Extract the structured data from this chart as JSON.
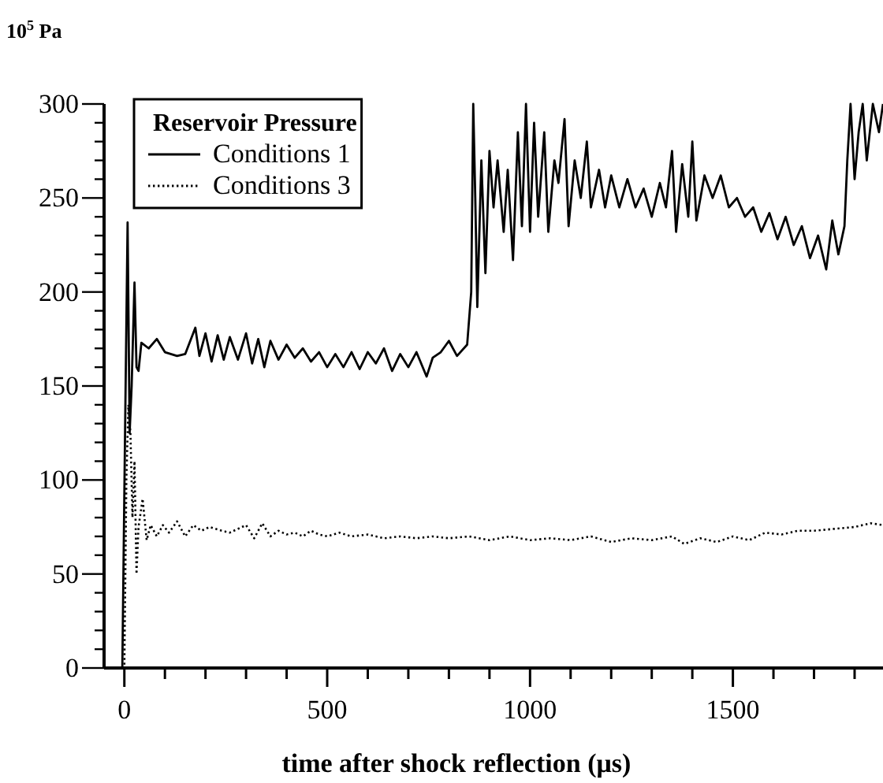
{
  "chart_data": {
    "type": "line",
    "ylabel": "10$^{5}$ Pa",
    "xlabel": "time after shock reflection (μs)",
    "legend_title": "Reservoir Pressure",
    "legend": "top left",
    "grid": false,
    "xlim": [
      -50,
      1870
    ],
    "ylim": [
      0,
      300
    ],
    "xticks": [
      0,
      {
        "value": 100,
        "label": null
      },
      {
        "value": 200,
        "label": null
      },
      {
        "value": 300,
        "label": null
      },
      {
        "value": 400,
        "label": null
      },
      500,
      {
        "value": 600,
        "label": null
      },
      {
        "value": 700,
        "label": null
      },
      {
        "value": 800,
        "label": null
      },
      {
        "value": 900,
        "label": null
      },
      1000,
      {
        "value": 1100,
        "label": null
      },
      {
        "value": 1200,
        "label": null
      },
      {
        "value": 1300,
        "label": null
      },
      {
        "value": 1400,
        "label": null
      },
      1500,
      {
        "value": 1600,
        "label": null
      },
      {
        "value": 1700,
        "label": null
      },
      {
        "value": 1800,
        "label": null
      }
    ],
    "yticks": [
      0,
      {
        "value": 10,
        "label": null
      },
      {
        "value": 20,
        "label": null
      },
      {
        "value": 30,
        "label": null
      },
      {
        "value": 40,
        "label": null
      },
      50,
      {
        "value": 60,
        "label": null
      },
      {
        "value": 70,
        "label": null
      },
      {
        "value": 80,
        "label": null
      },
      {
        "value": 90,
        "label": null
      },
      100,
      {
        "value": 110,
        "label": null
      },
      {
        "value": 120,
        "label": null
      },
      {
        "value": 130,
        "label": null
      },
      {
        "value": 140,
        "label": null
      },
      150,
      {
        "value": 160,
        "label": null
      },
      {
        "value": 170,
        "label": null
      },
      {
        "value": 180,
        "label": null
      },
      {
        "value": 190,
        "label": null
      },
      200,
      {
        "value": 210,
        "label": null
      },
      {
        "value": 220,
        "label": null
      },
      {
        "value": 230,
        "label": null
      },
      {
        "value": 240,
        "label": null
      },
      250,
      {
        "value": 260,
        "label": null
      },
      {
        "value": 270,
        "label": null
      },
      {
        "value": 280,
        "label": null
      },
      {
        "value": 290,
        "label": null
      },
      300
    ],
    "series": [
      {
        "name": "Conditions 1",
        "color": "#000000",
        "line_style": "solid",
        "x": [
          -50,
          -5,
          2,
          8,
          13,
          18,
          25,
          30,
          35,
          42,
          60,
          80,
          100,
          130,
          150,
          175,
          185,
          200,
          215,
          230,
          245,
          260,
          280,
          300,
          315,
          330,
          345,
          360,
          380,
          400,
          420,
          440,
          460,
          480,
          500,
          520,
          540,
          560,
          580,
          600,
          620,
          640,
          660,
          680,
          700,
          720,
          745,
          760,
          780,
          800,
          820,
          845,
          855,
          860,
          865,
          870,
          880,
          890,
          900,
          910,
          920,
          935,
          945,
          958,
          970,
          980,
          990,
          1000,
          1010,
          1020,
          1035,
          1045,
          1060,
          1070,
          1085,
          1095,
          1110,
          1125,
          1140,
          1150,
          1170,
          1185,
          1200,
          1220,
          1240,
          1260,
          1280,
          1300,
          1320,
          1335,
          1350,
          1360,
          1375,
          1390,
          1400,
          1410,
          1430,
          1450,
          1470,
          1490,
          1510,
          1530,
          1550,
          1570,
          1590,
          1610,
          1630,
          1650,
          1670,
          1690,
          1710,
          1730,
          1745,
          1760,
          1775,
          1782,
          1790,
          1800,
          1810,
          1820,
          1830,
          1845,
          1860,
          1870
        ],
        "values": [
          0,
          0,
          130,
          237,
          125,
          150,
          205,
          160,
          158,
          173,
          170,
          175,
          168,
          166,
          167,
          181,
          166,
          178,
          163,
          177,
          164,
          176,
          164,
          178,
          162,
          175,
          160,
          174,
          164,
          172,
          165,
          170,
          163,
          168,
          160,
          167,
          160,
          168,
          159,
          168,
          162,
          170,
          158,
          167,
          160,
          168,
          155,
          165,
          168,
          174,
          166,
          172,
          200,
          300,
          250,
          192,
          270,
          210,
          275,
          245,
          270,
          232,
          265,
          217,
          285,
          235,
          300,
          232,
          290,
          240,
          285,
          232,
          270,
          258,
          292,
          235,
          270,
          250,
          280,
          245,
          265,
          245,
          262,
          245,
          260,
          245,
          255,
          240,
          258,
          245,
          275,
          232,
          268,
          240,
          280,
          238,
          262,
          250,
          262,
          245,
          250,
          240,
          245,
          232,
          242,
          228,
          240,
          225,
          235,
          218,
          230,
          212,
          238,
          220,
          235,
          270,
          300,
          260,
          285,
          300,
          270,
          300,
          285,
          300
        ]
      },
      {
        "name": "Conditions 3",
        "color": "#000000",
        "line_style": "dotted",
        "x": [
          -50,
          0,
          5,
          10,
          15,
          20,
          25,
          30,
          35,
          45,
          55,
          65,
          80,
          95,
          110,
          130,
          150,
          170,
          190,
          210,
          240,
          260,
          280,
          300,
          320,
          340,
          360,
          380,
          400,
          420,
          440,
          460,
          480,
          500,
          530,
          560,
          600,
          640,
          680,
          720,
          760,
          800,
          850,
          900,
          950,
          1000,
          1050,
          1100,
          1150,
          1200,
          1250,
          1300,
          1350,
          1380,
          1420,
          1460,
          1500,
          1540,
          1580,
          1620,
          1660,
          1700,
          1750,
          1800,
          1840,
          1870
        ],
        "values": [
          0,
          0,
          100,
          140,
          125,
          80,
          110,
          50,
          75,
          90,
          68,
          76,
          70,
          76,
          72,
          78,
          70,
          76,
          73,
          75,
          73,
          72,
          74,
          76,
          69,
          77,
          70,
          73,
          71,
          72,
          70,
          73,
          71,
          70,
          72,
          70,
          71,
          69,
          70,
          69,
          70,
          69,
          70,
          68,
          70,
          68,
          69,
          68,
          70,
          67,
          69,
          68,
          70,
          66,
          69,
          67,
          70,
          68,
          72,
          71,
          73,
          73,
          74,
          75,
          77,
          76
        ]
      }
    ]
  }
}
